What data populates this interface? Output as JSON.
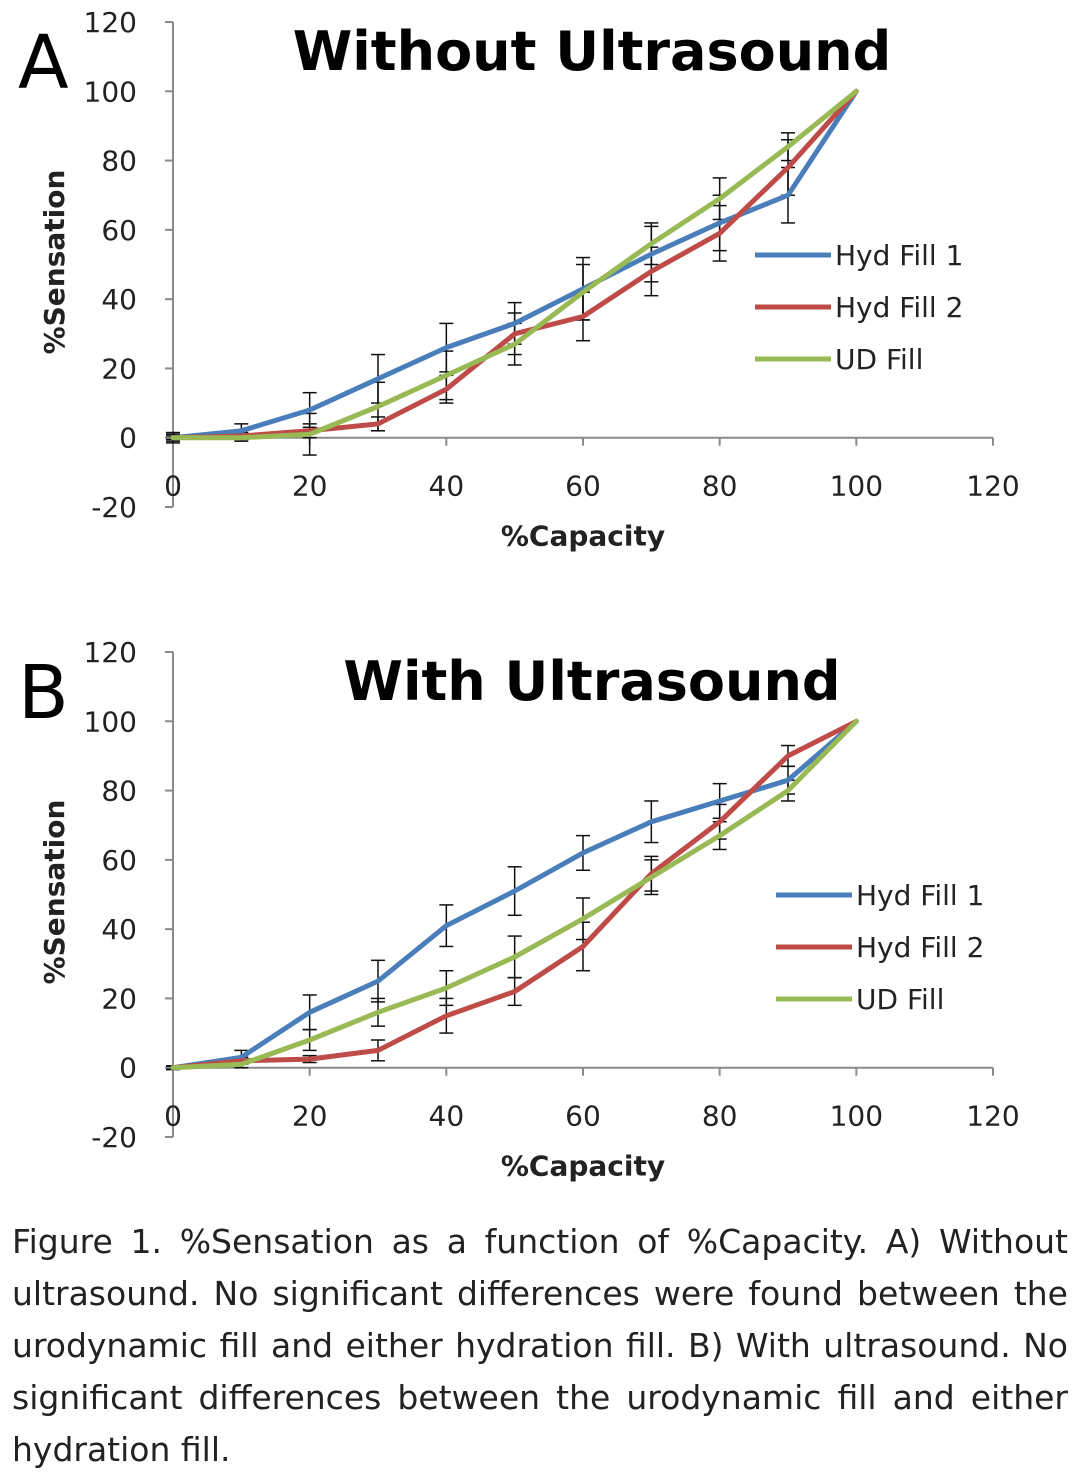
{
  "chart_data": [
    {
      "type": "line",
      "panel": "A",
      "title": "Without Ultrasound",
      "xlabel": "%Capacity",
      "ylabel": "%Sensation",
      "xlim": [
        0,
        120
      ],
      "ylim": [
        -20,
        120
      ],
      "xticks": [
        "0",
        "20",
        "40",
        "60",
        "80",
        "100",
        "120"
      ],
      "yticks": [
        "-20",
        "0",
        "20",
        "40",
        "60",
        "80",
        "100",
        "120"
      ],
      "legend_position": "right",
      "x": [
        0,
        10,
        20,
        30,
        40,
        50,
        60,
        70,
        80,
        90,
        100
      ],
      "series": [
        {
          "name": "Hyd Fill 1",
          "color": "#4a7ebb",
          "values": [
            0,
            2,
            8,
            17,
            26,
            33,
            43,
            53,
            62,
            70,
            100
          ],
          "errors": [
            1.5,
            2,
            5,
            7,
            7,
            6,
            9,
            8,
            8,
            8,
            0
          ]
        },
        {
          "name": "Hyd Fill 2",
          "color": "#be4b48",
          "values": [
            0,
            0.5,
            2,
            4,
            14,
            30,
            35,
            48,
            59,
            78,
            100
          ],
          "errors": [
            1,
            1,
            2,
            2,
            4,
            6,
            7,
            7,
            8,
            8,
            0
          ]
        },
        {
          "name": "UD Fill",
          "color": "#98b954",
          "values": [
            0,
            0,
            1,
            9,
            18,
            27,
            42,
            56,
            69,
            84,
            100
          ],
          "errors": [
            0.5,
            1,
            6,
            7,
            7,
            6,
            8,
            6,
            6,
            4,
            0
          ]
        }
      ]
    },
    {
      "type": "line",
      "panel": "B",
      "title": "With Ultrasound",
      "xlabel": "%Capacity",
      "ylabel": "%Sensation",
      "xlim": [
        0,
        120
      ],
      "ylim": [
        -20,
        120
      ],
      "xticks": [
        "0",
        "20",
        "40",
        "60",
        "80",
        "100",
        "120"
      ],
      "yticks": [
        "-20",
        "0",
        "20",
        "40",
        "60",
        "80",
        "100",
        "120"
      ],
      "legend_position": "right",
      "x": [
        0,
        10,
        20,
        30,
        40,
        50,
        60,
        70,
        80,
        90,
        100
      ],
      "series": [
        {
          "name": "Hyd Fill 1",
          "color": "#4a7ebb",
          "values": [
            0,
            3,
            16,
            25,
            41,
            51,
            62,
            71,
            77,
            83,
            100
          ],
          "errors": [
            0.5,
            2,
            5,
            6,
            6,
            7,
            5,
            6,
            5,
            4,
            0
          ]
        },
        {
          "name": "Hyd Fill 2",
          "color": "#be4b48",
          "values": [
            0,
            2,
            2.5,
            5,
            15,
            22,
            35,
            56,
            71,
            90,
            100
          ],
          "errors": [
            0.5,
            1,
            1,
            3,
            5,
            4,
            7,
            5,
            5,
            3,
            0
          ]
        },
        {
          "name": "UD Fill",
          "color": "#98b954",
          "values": [
            0,
            1,
            8,
            16,
            23,
            32,
            43,
            55,
            67,
            80,
            100
          ],
          "errors": [
            0.5,
            1,
            3,
            4,
            5,
            6,
            6,
            5,
            4,
            3,
            0
          ]
        }
      ]
    }
  ],
  "caption": "Figure 1. %Sensation as a function of %Capacity. A) Without ultrasound. No significant differences were found between the urodynamic fill and either hydration fill.   B) With ultrasound. No significant differences between the urodynamic fill and either hydration fill."
}
